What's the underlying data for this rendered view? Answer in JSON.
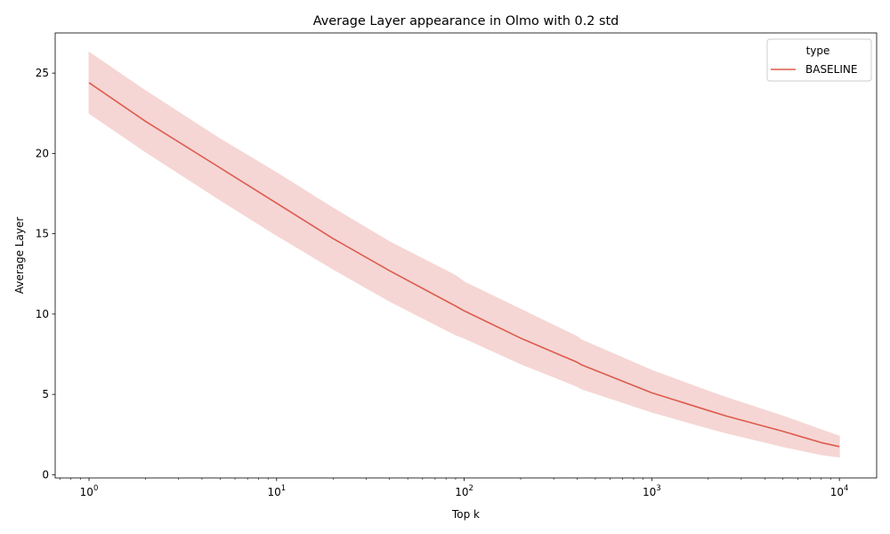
{
  "chart_data": {
    "type": "line",
    "title": "Average Layer appearance in Olmo with 0.2 std",
    "xlabel": "Top k",
    "ylabel": "Average Layer",
    "xscale": "log",
    "xlim": [
      0.66,
      15800
    ],
    "ylim": [
      -0.2,
      27.5
    ],
    "x_ticks": [
      {
        "value": 1,
        "base": "10",
        "exp": "0"
      },
      {
        "value": 10,
        "base": "10",
        "exp": "1"
      },
      {
        "value": 100,
        "base": "10",
        "exp": "2"
      },
      {
        "value": 1000,
        "base": "10",
        "exp": "3"
      },
      {
        "value": 10000,
        "base": "10",
        "exp": "4"
      }
    ],
    "y_ticks": [
      0,
      5,
      10,
      15,
      20,
      25
    ],
    "grid": false,
    "legend": {
      "title": "type",
      "position": "top-right"
    },
    "series": [
      {
        "name": "BASELINE",
        "color": "#dd5a4d",
        "band_color": "#f5d6d4",
        "x": [
          1,
          2,
          5,
          10,
          20,
          40,
          90,
          100,
          200,
          400,
          420,
          1000,
          2000,
          2500,
          5000,
          8000,
          10000
        ],
        "y": [
          24.4,
          22.0,
          19.1,
          16.9,
          14.7,
          12.7,
          10.5,
          10.2,
          8.5,
          7.0,
          6.85,
          5.1,
          4.0,
          3.65,
          2.7,
          2.0,
          1.75
        ],
        "lower": [
          22.5,
          20.1,
          17.1,
          14.9,
          12.8,
          10.8,
          8.7,
          8.5,
          6.9,
          5.5,
          5.35,
          3.9,
          2.9,
          2.6,
          1.75,
          1.25,
          1.1
        ],
        "upper": [
          26.3,
          23.9,
          20.9,
          18.8,
          16.6,
          14.5,
          12.4,
          12.0,
          10.3,
          8.6,
          8.4,
          6.5,
          5.2,
          4.8,
          3.65,
          2.8,
          2.4
        ]
      }
    ]
  }
}
